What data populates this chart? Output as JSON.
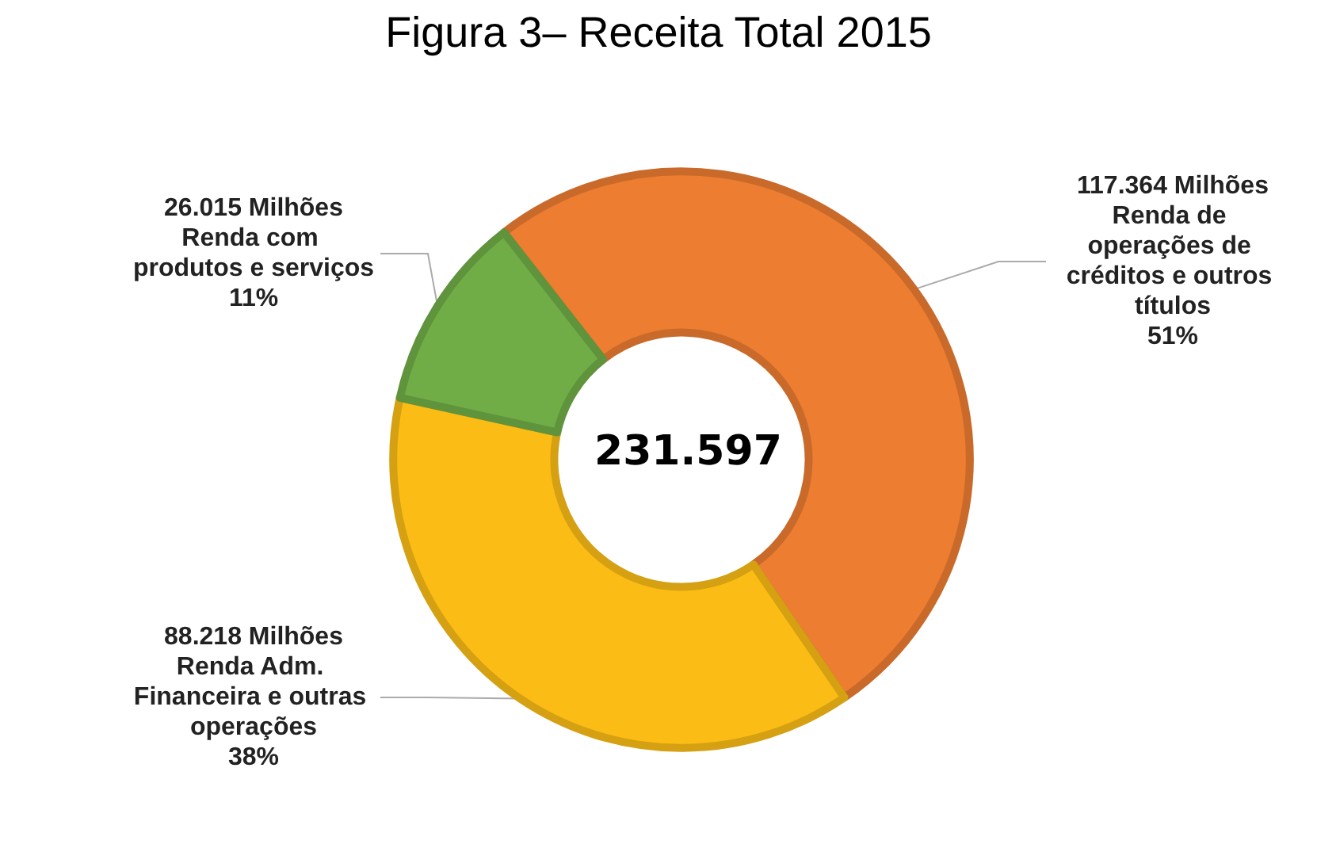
{
  "chart_data": {
    "type": "donut",
    "title": "Figura 3– Receita Total 2015",
    "categories": [
      "Renda de operações de créditos e outros títulos",
      "Renda Adm. Financeira e outras operações",
      "Renda com produtos e serviços"
    ],
    "values": [
      51,
      38,
      11
    ],
    "value_labels": [
      [
        "117.364 Milhões",
        "51%"
      ],
      [
        "88.218 Milhões",
        "38%"
      ],
      [
        "26.015 Milhões",
        "11%"
      ]
    ],
    "colors": [
      "#ed7d31",
      "#fbbc15",
      "#70ad47"
    ],
    "annotations": [
      "231.597"
    ],
    "legend": false
  }
}
